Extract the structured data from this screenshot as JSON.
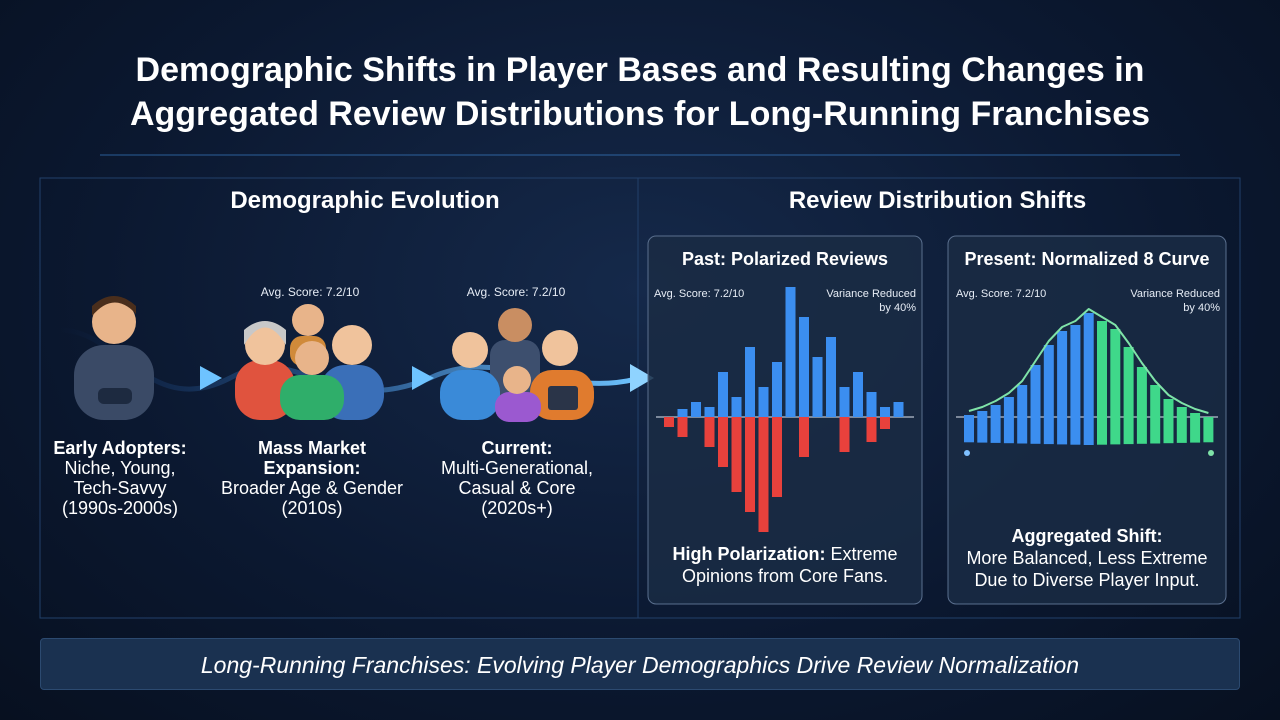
{
  "title": "Demographic Shifts in Player Bases and Resulting Changes in Aggregated Review Distributions for Long-Running Franchises",
  "left_section": {
    "heading": "Demographic Evolution",
    "stages": [
      {
        "heading": [
          "Early Adopters:"
        ],
        "details": [
          "Niche, Young,",
          "Tech-Savvy",
          "(1990s-2000s)"
        ]
      },
      {
        "score": "Avg. Score: 7.2/10",
        "heading": [
          "Mass Market",
          "Expansion:"
        ],
        "details": [
          "Broader Age & Gender",
          "(2010s)"
        ]
      },
      {
        "score": "Avg. Score: 7.2/10",
        "heading": [
          "Current:"
        ],
        "details": [
          "Multi-Generational,",
          "Casual & Core",
          "(2020s+)"
        ]
      }
    ]
  },
  "right_section": {
    "heading": "Review Distribution Shifts",
    "panels": [
      {
        "title": "Past: Polarized Reviews",
        "score": "Avg. Score: 7.2/10",
        "note": "Variance Reduced by 40%",
        "caption_bold": "High Polarization:",
        "caption": "Extreme Opinions from Core Fans.",
        "above": [
          0,
          8,
          15,
          10,
          45,
          20,
          70,
          30,
          55,
          130,
          100,
          60,
          80,
          30,
          45,
          25,
          10,
          15
        ],
        "below": [
          10,
          20,
          0,
          30,
          50,
          75,
          95,
          115,
          80,
          0,
          40,
          0,
          0,
          35,
          0,
          25,
          12,
          0
        ],
        "above_color": "#3b8ef0",
        "below_color": "#e8413c"
      },
      {
        "title": "Present: Normalized 8 Curve",
        "score": "Avg. Score: 7.2/10",
        "note": "Variance Reduced by 40%",
        "caption_bold": "Aggregated Shift:",
        "caption": "More Balanced, Less Extreme Due to Diverse Player Input.",
        "values": [
          2,
          6,
          12,
          20,
          32,
          52,
          72,
          86,
          92,
          104,
          96,
          88,
          70,
          50,
          32,
          18,
          10,
          4,
          0
        ],
        "left_color": "#3b8ef0",
        "right_color": "#3fd88a"
      }
    ]
  },
  "footer": "Long-Running Franchises: Evolving Player Demographics Drive Review Normalization"
}
